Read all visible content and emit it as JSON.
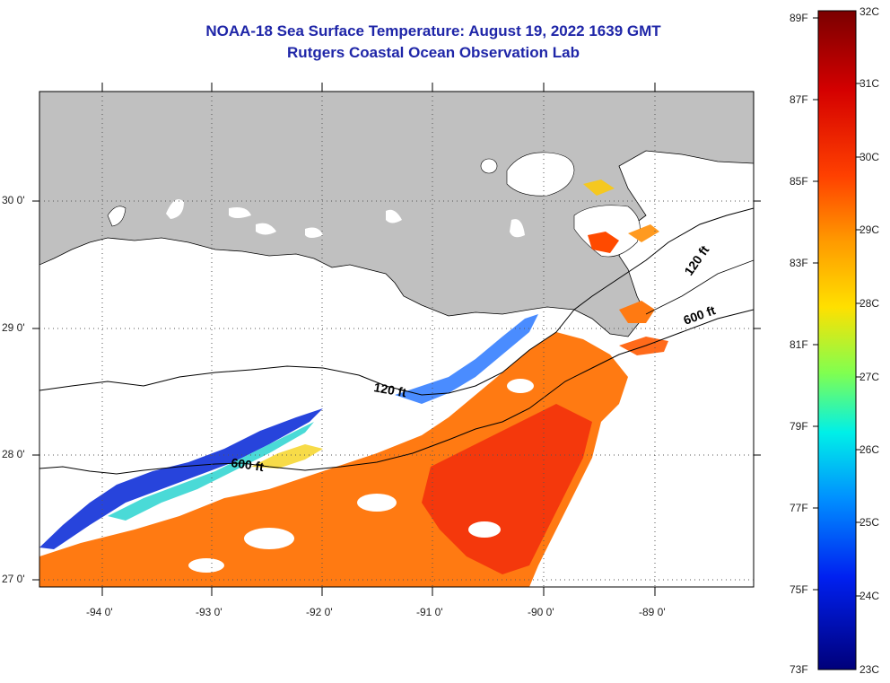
{
  "title": {
    "line1": "NOAA-18 Sea Surface Temperature:  August 19, 2022 1639 GMT",
    "line2": "Rutgers Coastal Ocean Observation Lab"
  },
  "map": {
    "x_ticks": [
      "-94 0'",
      "-93 0'",
      "-92 0'",
      "-91 0'",
      "-90 0'",
      "-89 0'"
    ],
    "y_ticks": [
      "30 0'",
      "29 0'",
      "28 0'",
      "27 0'"
    ],
    "isobath_labels": [
      "120 ft",
      "600 ft",
      "120 ft",
      "600 ft"
    ],
    "land_color": "#c0c0c0",
    "cloud_color": "#ffffff"
  },
  "colorbar": {
    "fahrenheit_labels": [
      "89F",
      "87F",
      "85F",
      "83F",
      "81F",
      "79F",
      "77F",
      "75F",
      "73F"
    ],
    "celsius_labels": [
      "32C",
      "31C",
      "30C",
      "29C",
      "28C",
      "27C",
      "26C",
      "25C",
      "24C",
      "23C"
    ],
    "colors": [
      "#7a0000",
      "#cc0000",
      "#ff2a00",
      "#ff7a00",
      "#ffc400",
      "#e6ff00",
      "#7fff60",
      "#00ffe0",
      "#00aaff",
      "#0044ff",
      "#0000c8",
      "#00007a"
    ]
  }
}
